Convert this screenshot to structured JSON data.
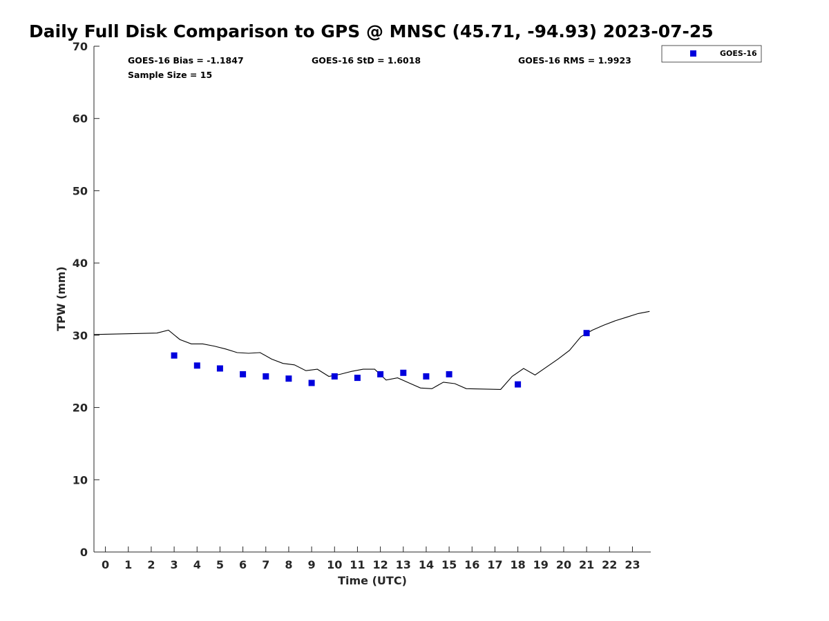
{
  "chart_data": {
    "type": "scatter",
    "title": "Daily Full Disk Comparison to GPS @ MNSC (45.71, -94.93) 2023-07-25",
    "xlabel": "Time (UTC)",
    "ylabel": "TPW (mm)",
    "xlim": [
      -0.5,
      23.8
    ],
    "ylim": [
      0,
      70
    ],
    "x_ticks": [
      "0",
      "1",
      "2",
      "3",
      "4",
      "5",
      "6",
      "7",
      "8",
      "9",
      "10",
      "11",
      "12",
      "13",
      "14",
      "15",
      "16",
      "17",
      "18",
      "19",
      "20",
      "21",
      "22",
      "23"
    ],
    "y_ticks": [
      "0",
      "10",
      "20",
      "30",
      "40",
      "50",
      "60",
      "70"
    ],
    "grid": false,
    "legend_position": "outside-top-right",
    "stats": {
      "bias": "GOES-16 Bias = -1.1847",
      "std": "GOES-16 StD = 1.6018",
      "rms": "GOES-16 RMS = 1.9923",
      "sample": "Sample Size = 15"
    },
    "series": [
      {
        "name": "GOES-16",
        "kind": "scatter",
        "color": "#0000dd",
        "marker": "square",
        "x": [
          3,
          4,
          5,
          6,
          7,
          8,
          9,
          10,
          11,
          12,
          13,
          14,
          15,
          18,
          21
        ],
        "y": [
          27.2,
          25.8,
          25.4,
          24.6,
          24.3,
          24.0,
          23.4,
          24.3,
          24.1,
          24.6,
          24.8,
          24.3,
          24.6,
          23.2,
          30.3
        ]
      },
      {
        "kind": "line",
        "color": "#000000",
        "x": [
          -0.5,
          2.25,
          2.75,
          3.25,
          3.75,
          4.25,
          4.75,
          5.25,
          5.75,
          6.25,
          6.75,
          7.25,
          7.75,
          8.25,
          8.75,
          9.25,
          9.75,
          10.25,
          10.75,
          11.25,
          11.75,
          12.25,
          12.75,
          13.25,
          13.75,
          14.25,
          14.75,
          15.25,
          15.75,
          17.25,
          17.75,
          18.25,
          18.75,
          19.25,
          19.75,
          20.25,
          20.75,
          21.25,
          21.75,
          22.25,
          22.75,
          23.25,
          23.75
        ],
        "y": [
          30.1,
          30.3,
          30.7,
          29.4,
          28.8,
          28.8,
          28.5,
          28.1,
          27.6,
          27.5,
          27.6,
          26.7,
          26.1,
          25.9,
          25.1,
          25.3,
          24.3,
          24.6,
          25.0,
          25.3,
          25.3,
          23.8,
          24.1,
          23.4,
          22.7,
          22.6,
          23.5,
          23.3,
          22.6,
          22.5,
          24.3,
          25.4,
          24.5,
          25.6,
          26.7,
          27.9,
          29.8,
          30.7,
          31.4,
          32.0,
          32.5,
          33.0,
          33.3
        ]
      }
    ]
  }
}
